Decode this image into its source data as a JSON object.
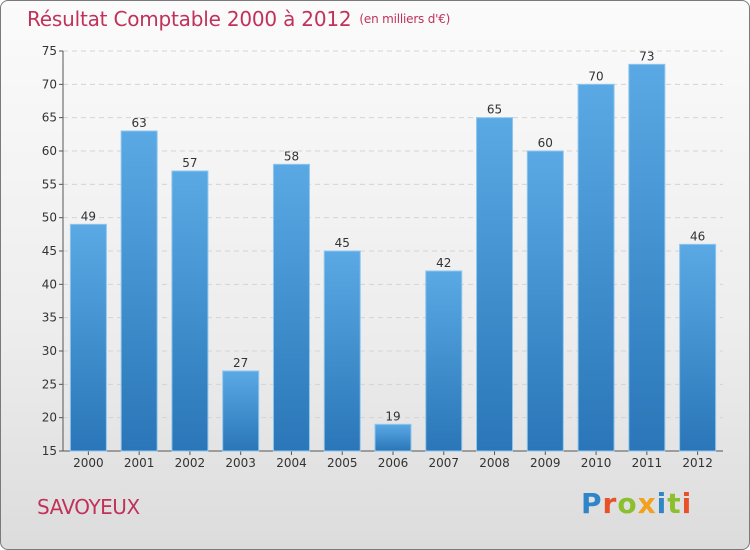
{
  "header": {
    "title": "Résultat Comptable 2000 à 2012",
    "unit": "(en milliers d'€)"
  },
  "footer": {
    "commune": "SAVOYEUX",
    "brand": "Proxiti"
  },
  "colors": {
    "title": "#c0325a",
    "bar_top": "#5aa9e4",
    "bar_bottom": "#2a76b8",
    "bar_edge": "#8fc6ee"
  },
  "chart_data": {
    "type": "bar",
    "title": "Résultat Comptable 2000 à 2012",
    "subtitle": "(en milliers d'€)",
    "xlabel": "",
    "ylabel": "",
    "categories": [
      "2000",
      "2001",
      "2002",
      "2003",
      "2004",
      "2005",
      "2006",
      "2007",
      "2008",
      "2009",
      "2010",
      "2011",
      "2012"
    ],
    "values": [
      49,
      63,
      57,
      27,
      58,
      45,
      19,
      42,
      65,
      60,
      70,
      73,
      46
    ],
    "ylim": [
      15,
      75
    ],
    "yticks": [
      15,
      20,
      25,
      30,
      35,
      40,
      45,
      50,
      55,
      60,
      65,
      70,
      75
    ],
    "grid": true,
    "legend": "none"
  }
}
